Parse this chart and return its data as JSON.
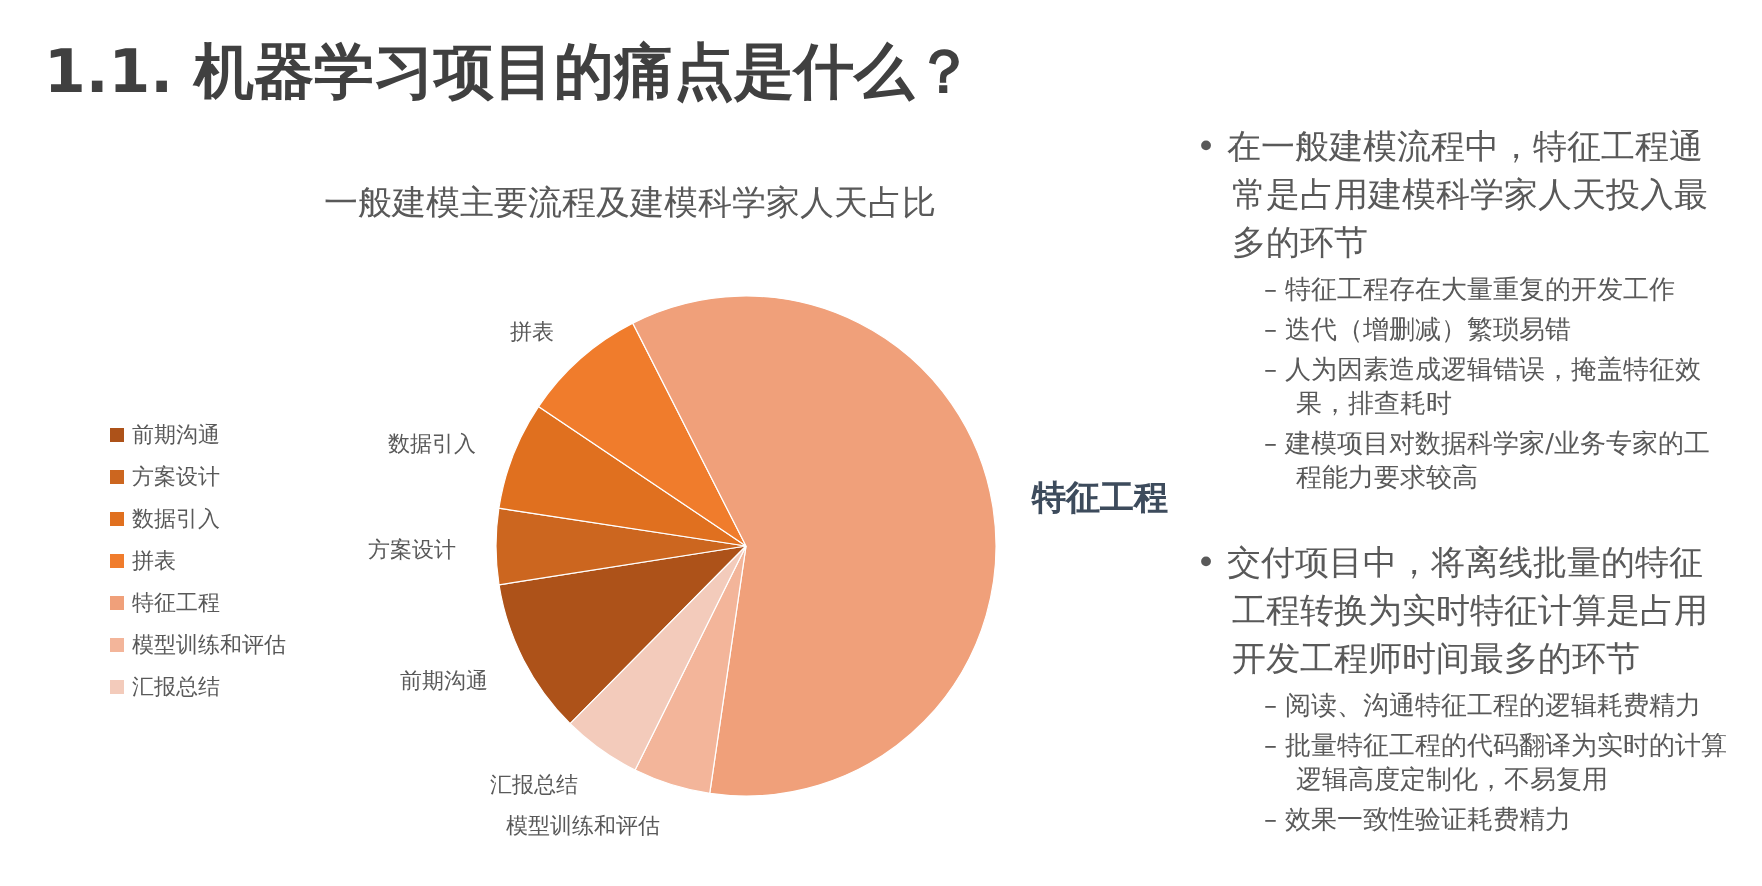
{
  "chart_data": {
    "type": "pie",
    "title": "1.1. 机器学习项目的痛点是什么？",
    "subtitle": "一般建模主要流程及建模科学家人天占比",
    "categories": [
      "前期沟通",
      "方案设计",
      "数据引入",
      "拼表",
      "特征工程",
      "模型训练和评估",
      "汇报总结"
    ],
    "values": [
      10.1,
      4.9,
      7.0,
      8.1,
      59.8,
      5.0,
      5.1
    ],
    "colors": [
      "#ad5219",
      "#cc661f",
      "#e0701f",
      "#f07c2c",
      "#f0a07a",
      "#f3b59a",
      "#f3cbbb"
    ],
    "legend": "left",
    "annotations": [
      "• 在一般建模流程中，特征工程通常是占用建模科学家人天投入最多的环节",
      "– 特征工程存在大量重复的开发工作",
      "– 迭代（增删减）繁琐易错",
      "– 人为因素造成逻辑错误，掩盖特征效果，排查耗时",
      "– 建模项目对数据科学家/业务专家的工程能力要求较高",
      "• 交付项目中，将离线批量的特征工程转换为实时特征计算是占用开发工程师时间最多的环节",
      "– 阅读、沟通特征工程的逻辑耗费精力",
      "– 批量特征工程的代码翻译为实时的计算逻辑高度定制化，不易复用",
      "– 效果一致性验证耗费精力"
    ]
  }
}
